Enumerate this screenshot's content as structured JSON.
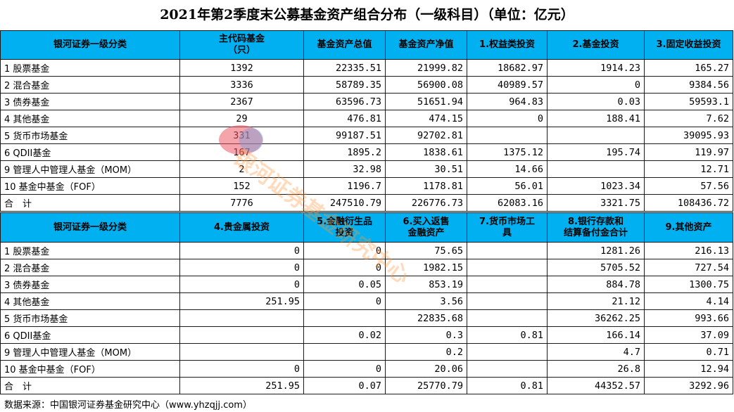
{
  "title": "2021年第2季度末公募基金资产组合分布（一级科目）（单位：亿元）",
  "table1": {
    "headers": [
      "银河证券一级分类",
      "主代码基金\n（只）",
      "基金资产总值",
      "基金资产净值",
      "1.权益类投资",
      "2.基金投资",
      "3.固定收益投资"
    ],
    "rows": [
      [
        "1 股票基金",
        "1392",
        "22335.51",
        "21999.82",
        "18682.97",
        "1914.23",
        "165.27"
      ],
      [
        "2 混合基金",
        "3336",
        "58789.35",
        "56900.08",
        "40989.57",
        "0",
        "9384.56"
      ],
      [
        "3 债券基金",
        "2367",
        "63596.73",
        "51651.94",
        "964.83",
        "0.03",
        "59593.1"
      ],
      [
        "4 其他基金",
        "29",
        "476.81",
        "474.15",
        "0",
        "188.41",
        "7.62"
      ],
      [
        "5 货币市场基金",
        "331",
        "99187.51",
        "92702.81",
        "",
        "",
        "39095.93"
      ],
      [
        "6 QDII基金",
        "167",
        "1895.2",
        "1838.61",
        "1375.12",
        "195.74",
        "119.97"
      ],
      [
        "9 管理人中管理人基金（MOM）",
        "2",
        "32.98",
        "30.51",
        "14.66",
        "",
        "12.71"
      ],
      [
        "10 基金中基金（FOF）",
        "152",
        "1196.7",
        "1178.81",
        "56.01",
        "1023.34",
        "57.56"
      ],
      [
        "合　计",
        "7776",
        "247510.79",
        "226776.73",
        "62083.16",
        "3321.75",
        "108436.72"
      ]
    ]
  },
  "table2": {
    "headers": [
      "银河证券一级分类",
      "4.贵金属投资",
      "5.金融衍生品\n投资",
      "6.买入返售\n金融资产",
      "7.货币市场工\n具",
      "8.银行存款和\n结算备付金合计",
      "9.其他资产"
    ],
    "rows": [
      [
        "1 股票基金",
        "0",
        "0",
        "75.65",
        "",
        "1281.26",
        "216.13"
      ],
      [
        "2 混合基金",
        "0",
        "0",
        "1982.15",
        "",
        "5705.52",
        "727.54"
      ],
      [
        "3 债券基金",
        "0",
        "0.05",
        "853.19",
        "",
        "884.78",
        "1300.75"
      ],
      [
        "4 其他基金",
        "251.95",
        "0",
        "3.56",
        "",
        "21.12",
        "4.14"
      ],
      [
        "5 货币市场基金",
        "",
        "",
        "22835.68",
        "",
        "36262.25",
        "993.66"
      ],
      [
        "6 QDII基金",
        "",
        "0.02",
        "0.3",
        "0.81",
        "166.14",
        "37.09"
      ],
      [
        "9 管理人中管理人基金（MOM）",
        "",
        "",
        "0.2",
        "",
        "4.7",
        "0.71"
      ],
      [
        "10 基金中基金（FOF）",
        "0",
        "0",
        "20.06",
        "",
        "26.8",
        "12.94"
      ],
      [
        "合　计",
        "251.95",
        "0.07",
        "25770.79",
        "0.81",
        "44352.57",
        "3292.96"
      ]
    ]
  },
  "source": "数据来源：中国银河证券基金研究中心（www.yhzqjj.com）",
  "watermark": "银河证券基金研究中心",
  "colors": {
    "header_bg": "#00b0f0"
  }
}
